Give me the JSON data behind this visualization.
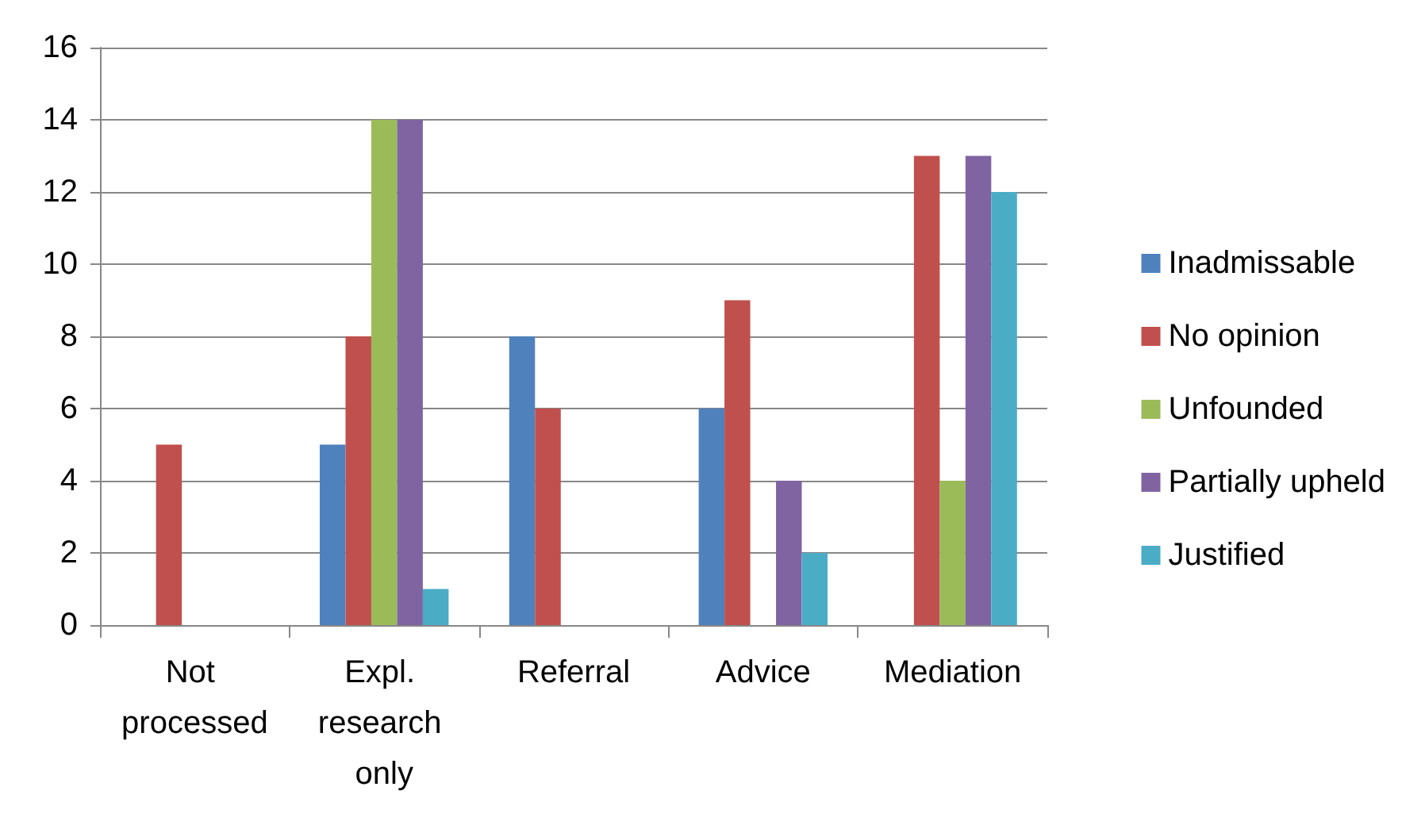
{
  "chart_data": {
    "type": "bar",
    "categories": [
      "Not processed",
      "Expl. research only",
      "Referral",
      "Advice",
      "Mediation"
    ],
    "series": [
      {
        "name": "Inadmissable",
        "color": "#4f81bd",
        "values": [
          0,
          5,
          8,
          6,
          0
        ]
      },
      {
        "name": "No opinion",
        "color": "#c0504d",
        "values": [
          5,
          8,
          6,
          9,
          13
        ]
      },
      {
        "name": "Unfounded",
        "color": "#9bbb59",
        "values": [
          0,
          14,
          0,
          0,
          4
        ]
      },
      {
        "name": "Partially upheld",
        "color": "#8064a2",
        "values": [
          0,
          14,
          0,
          4,
          13
        ]
      },
      {
        "name": "Justified",
        "color": "#4bacc6",
        "values": [
          0,
          1,
          0,
          2,
          12
        ]
      }
    ],
    "ylim": [
      0,
      16
    ],
    "yticks": [
      0,
      2,
      4,
      6,
      8,
      10,
      12,
      14,
      16
    ],
    "grid": "y",
    "legend": "right"
  }
}
